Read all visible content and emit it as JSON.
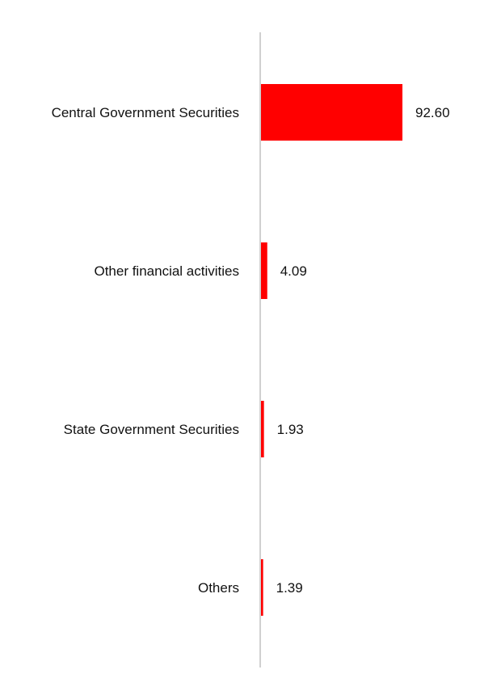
{
  "chart_data": {
    "type": "bar",
    "orientation": "horizontal",
    "categories": [
      "Central Government Securities",
      "Other financial activities",
      "State Government Securities",
      "Others"
    ],
    "values": [
      92.6,
      4.09,
      1.93,
      1.39
    ],
    "value_labels": [
      "92.60",
      "4.09",
      "1.93",
      "1.39"
    ],
    "title": "",
    "xlabel": "",
    "ylabel": "",
    "xlim": [
      0,
      100
    ],
    "grid": false,
    "legend": "none",
    "bar_color": "#ff0000",
    "axis_color": "#d0d0d0"
  }
}
